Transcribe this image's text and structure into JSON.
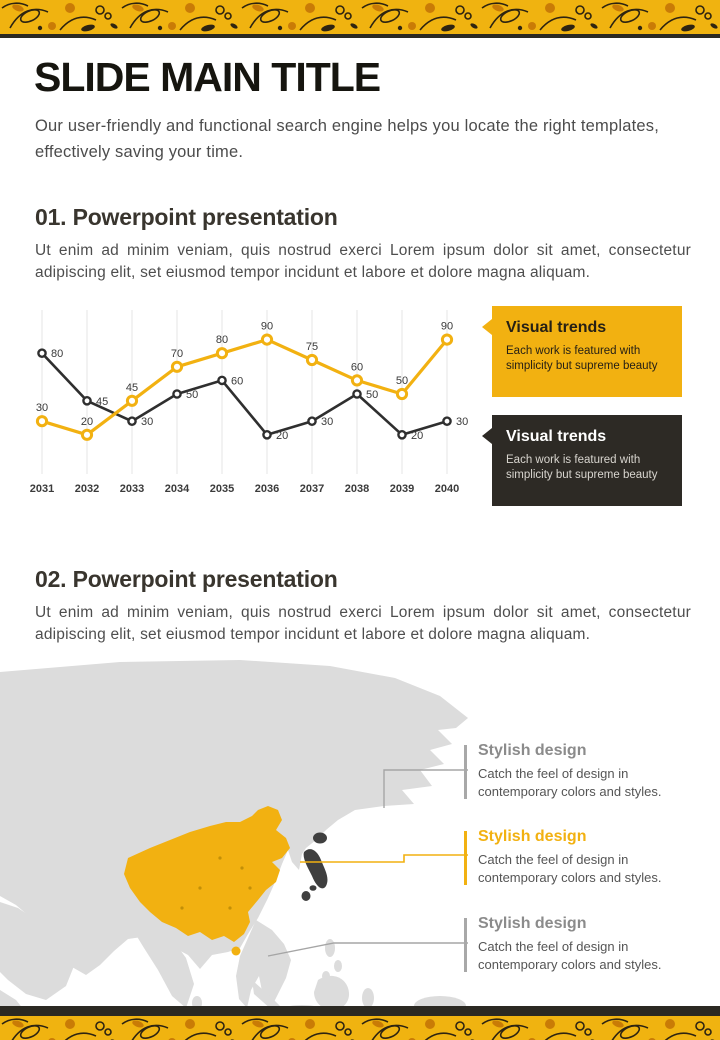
{
  "header": {
    "title": "SLIDE MAIN TITLE",
    "subtitle_line1": "Our user-friendly and functional search engine helps you locate the right templates,",
    "subtitle_line2": "effectively saving your time."
  },
  "sections": [
    {
      "heading": "01. Powerpoint presentation",
      "body": "Ut enim ad minim veniam, quis nostrud exerci Lorem ipsum dolor sit amet, consectetur adipiscing elit, set eiusmod tempor incidunt et labore et dolore magna aliquam."
    },
    {
      "heading": "02. Powerpoint presentation",
      "body": "Ut enim ad minim veniam, quis nostrud exerci Lorem ipsum dolor sit amet, consectetur adipiscing elit, set eiusmod tempor incidunt et labore et dolore magna aliquam."
    }
  ],
  "chart_data": {
    "type": "line",
    "categories": [
      "2031",
      "2032",
      "2033",
      "2034",
      "2035",
      "2036",
      "2037",
      "2038",
      "2039",
      "2040"
    ],
    "series": [
      {
        "name": "dark-series",
        "color": "#2F2F2F",
        "values": [
          80,
          45,
          30,
          50,
          60,
          20,
          30,
          50,
          20,
          30
        ]
      },
      {
        "name": "yellow-series",
        "color": "#F2B111",
        "values": [
          30,
          20,
          45,
          70,
          80,
          90,
          75,
          60,
          50,
          90
        ]
      }
    ],
    "ylim": [
      0,
      100
    ],
    "grid": "vertical-only",
    "legend": "none",
    "title": "",
    "xlabel": "",
    "ylabel": ""
  },
  "trend_callouts": [
    {
      "title": "Visual trends",
      "body": "Each work is featured with simplicity but supreme beauty",
      "variant": "yellow"
    },
    {
      "title": "Visual trends",
      "body": "Each work is featured with simplicity but supreme beauty",
      "variant": "dark"
    }
  ],
  "map_callouts": [
    {
      "title": "Stylish design",
      "body": "Catch the feel of design in contemporary colors and styles.",
      "variant": "gray"
    },
    {
      "title": "Stylish design",
      "body": "Catch the feel of design in contemporary colors and styles.",
      "variant": "yellow"
    },
    {
      "title": "Stylish design",
      "body": "Catch the feel of design in contemporary colors and styles.",
      "variant": "gray"
    }
  ],
  "colors": {
    "accent_yellow": "#F2B111",
    "banner_yellow": "#F0B310",
    "dark": "#2B2922",
    "map_land": "#DCDCDC",
    "map_japan": "#3F3F3F",
    "text_gray": "#4E4E4E"
  }
}
